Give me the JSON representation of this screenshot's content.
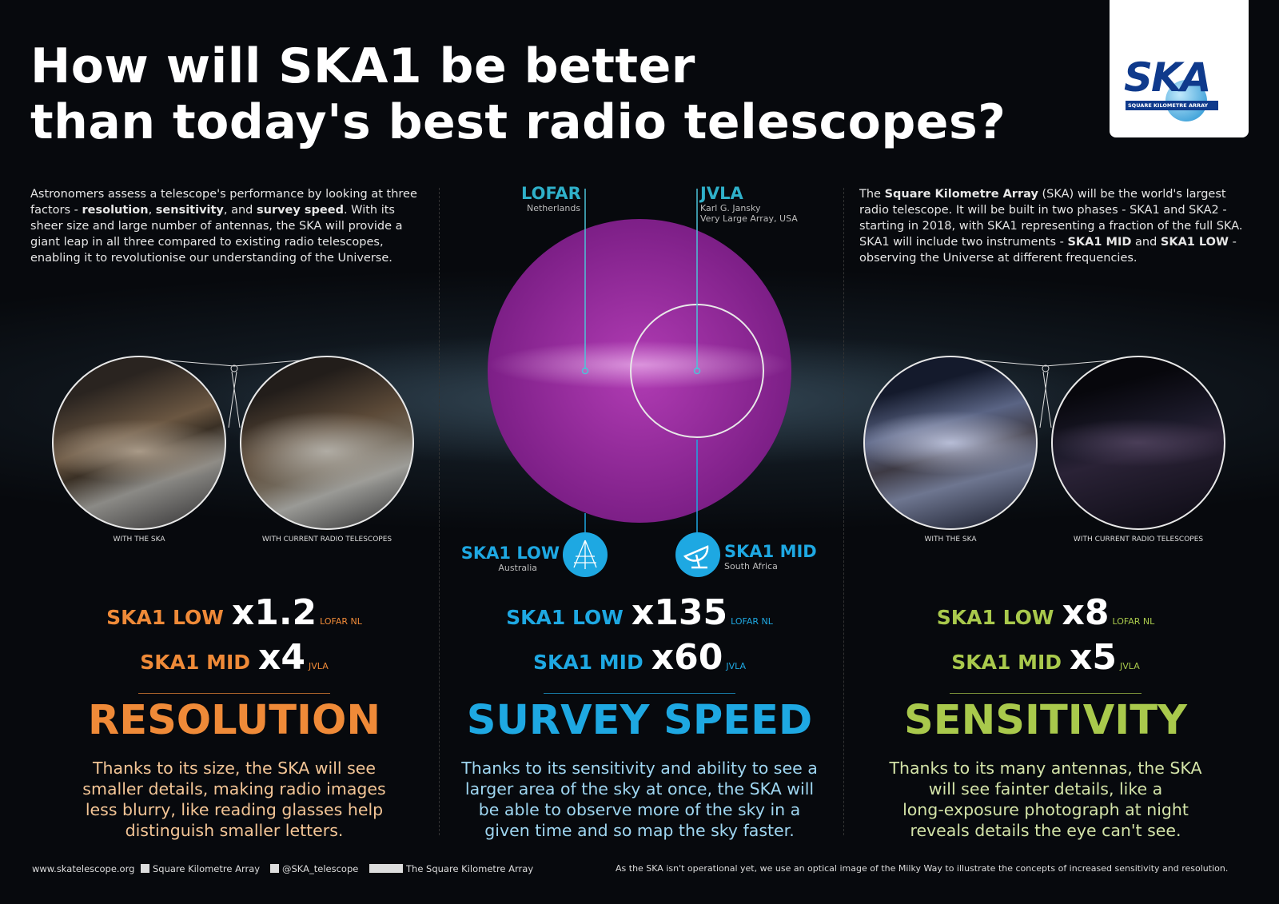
{
  "header": {
    "title_lines": [
      "How will SKA1 be better",
      "than today's best radio telescopes?"
    ]
  },
  "logo": {
    "name": "SKA",
    "subtitle": "SQUARE KILOMETRE ARRAY"
  },
  "intro": [
    {
      "text": "Astronomers assess a telescope's performance by looking at three factors - "
    },
    {
      "text": "resolution",
      "bold": true
    },
    {
      "text": ", "
    },
    {
      "text": "sensitivity",
      "bold": true
    },
    {
      "text": ", and "
    },
    {
      "text": "survey speed",
      "bold": true
    },
    {
      "text": ". With its sheer size and large number of antennas, the SKA will provide a giant leap in all three compared to existing radio telescopes, enabling it to revolutionise our understanding of the Universe."
    }
  ],
  "about": [
    {
      "text": "The "
    },
    {
      "text": "Square Kilometre Array",
      "bold": true
    },
    {
      "text": " (SKA) will be the world's largest radio telescope. It will be built in two phases - SKA1 and SKA2 - starting in 2018, with SKA1 representing a fraction of the full SKA. SKA1 will include two instruments - "
    },
    {
      "text": "SKA1 MID",
      "bold": true
    },
    {
      "text": " and "
    },
    {
      "text": "SKA1 LOW",
      "bold": true
    },
    {
      "text": " - observing the Universe at different frequencies."
    }
  ],
  "telescopes": {
    "lofar": {
      "name": "LOFAR",
      "location": [
        "Netherlands"
      ]
    },
    "jvla": {
      "name": "JVLA",
      "location": [
        "Karl G. Jansky",
        "Very Large Array, USA"
      ]
    },
    "ska1_low": {
      "name": "SKA1 LOW",
      "location": [
        "Australia"
      ]
    },
    "ska1_mid": {
      "name": "SKA1 MID",
      "location": [
        "South Africa"
      ]
    }
  },
  "panels": [
    {
      "heading": "RESOLUTION",
      "color": "#ef8a38",
      "text_color": "#f3c596",
      "captions": [
        "WITH THE SKA",
        "WITH CURRENT RADIO TELESCOPES"
      ],
      "stats": [
        {
          "label": "SKA1 LOW",
          "factor": "x1.2",
          "reference": "LOFAR NL"
        },
        {
          "label": "SKA1 MID",
          "factor": "x4",
          "reference": "JVLA"
        }
      ],
      "body": [
        "Thanks to its size, the SKA will see",
        "smaller details, making radio images",
        "less blurry, like reading glasses help",
        "distinguish smaller letters."
      ]
    },
    {
      "heading": "SURVEY SPEED",
      "color": "#1ea8e2",
      "text_color": "#9fd6f1",
      "stats": [
        {
          "label": "SKA1 LOW",
          "factor": "x135",
          "reference": "LOFAR NL"
        },
        {
          "label": "SKA1 MID",
          "factor": "x60",
          "reference": "JVLA"
        }
      ],
      "body": [
        "Thanks to its sensitivity and ability to see a",
        "larger area of the sky at once, the SKA will",
        "be able to observe more of the sky in a",
        "given time and so map the sky faster."
      ]
    },
    {
      "heading": "SENSITIVITY",
      "color": "#a9c94c",
      "text_color": "#d3e3a8",
      "captions": [
        "WITH THE SKA",
        "WITH CURRENT RADIO TELESCOPES"
      ],
      "stats": [
        {
          "label": "SKA1 LOW",
          "factor": "x8",
          "reference": "LOFAR NL"
        },
        {
          "label": "SKA1 MID",
          "factor": "x5",
          "reference": "JVLA"
        }
      ],
      "body": [
        "Thanks to its many antennas, the SKA",
        "will see fainter details, like a",
        "long-exposure photograph at night",
        "reveals details the eye can't see."
      ]
    }
  ],
  "footer": {
    "website": "www.skatelescope.org",
    "facebook": "Square Kilometre Array",
    "twitter": "@SKA_telescope",
    "youtube": "The Square Kilometre Array",
    "note": "As the SKA isn't operational yet, we use an optical image of the Milky Way to illustrate the concepts of increased sensitivity and resolution."
  }
}
